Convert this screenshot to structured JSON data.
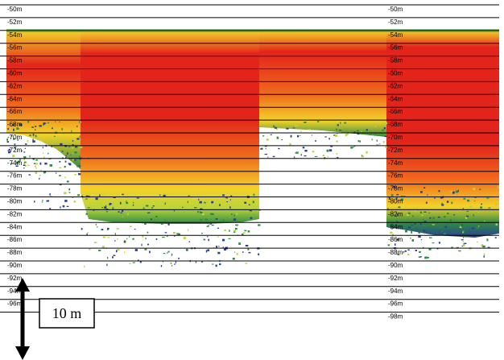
{
  "depth_labels": [
    "-50m",
    "-52m",
    "-54m",
    "-56m",
    "-58m",
    "-60m",
    "-62m",
    "-64m",
    "-66m",
    "-68m",
    "-70m",
    "-72m",
    "-74m",
    "-76m",
    "-78m",
    "-80m",
    "-82m",
    "-84m",
    "-86m",
    "-88m",
    "-90m",
    "-92m",
    "-94m",
    "-96m",
    "-98m"
  ],
  "left_column_visible_count": 24,
  "scale_bar": {
    "label": "10 m"
  },
  "colors": {
    "strong_red": "#e3241b",
    "orange": "#f06a1c",
    "yellow": "#f3d22a",
    "light_green": "#b8d43b",
    "green": "#2f8a43",
    "blue": "#2a3f95",
    "gridline": "#000000",
    "background": "#ffffff"
  },
  "icons": [
    "double-headed-arrow-icon"
  ]
}
